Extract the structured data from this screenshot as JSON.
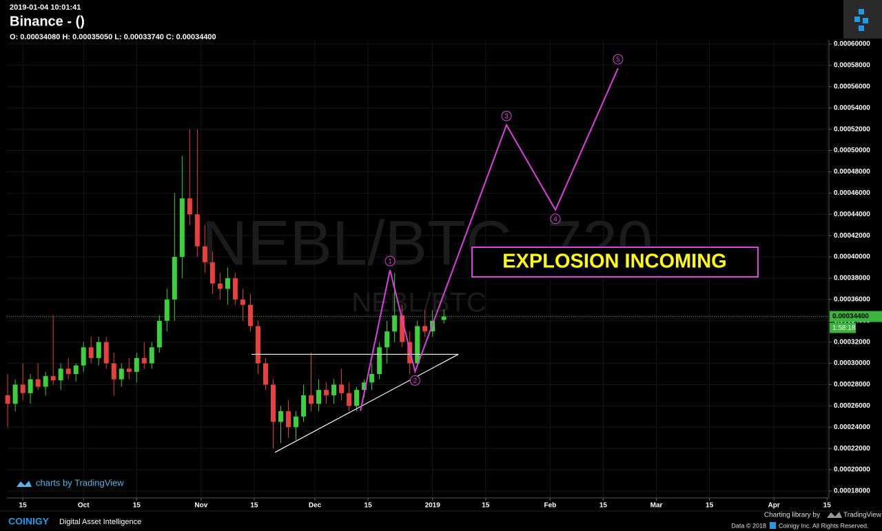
{
  "header": {
    "timestamp": "2019-01-04 10:01:41",
    "title": "Binance -  ()",
    "ohlc": "O: 0.00034080 H: 0.00035050 L: 0.00033740 C: 0.00034400"
  },
  "chart_data": {
    "type": "candlestick",
    "watermark": "NEBL/BTC, 720",
    "watermark_sub": "NEBL/BTC",
    "up_color": "#3bd13b",
    "down_color": "#e8413c",
    "grid": true,
    "x": [
      10,
      12,
      14,
      16,
      18,
      20,
      22,
      24,
      26,
      28,
      30,
      32,
      34,
      36,
      38,
      40,
      42,
      44,
      46,
      48,
      50,
      52,
      54,
      56,
      58,
      60,
      62,
      64,
      66,
      68,
      70,
      72,
      74,
      76,
      78,
      80,
      82,
      84,
      86,
      88,
      90,
      92,
      94,
      96,
      98,
      100,
      102,
      104,
      106,
      108,
      110,
      112,
      114,
      116,
      118,
      120,
      122,
      125
    ],
    "open": [
      0.00027,
      0.000262,
      0.00028,
      0.000272,
      0.000285,
      0.000278,
      0.000288,
      0.000284,
      0.000295,
      0.00029,
      0.000298,
      0.000315,
      0.000305,
      0.00032,
      0.0003,
      0.000285,
      0.000295,
      0.000292,
      0.000305,
      0.0003,
      0.000315,
      0.00034,
      0.00036,
      0.0004,
      0.000455,
      0.00044,
      0.00041,
      0.000395,
      0.000375,
      0.00037,
      0.00038,
      0.00036,
      0.000355,
      0.000335,
      0.0003,
      0.00028,
      0.000245,
      0.000255,
      0.00024,
      0.00025,
      0.00027,
      0.000262,
      0.000275,
      0.00027,
      0.00028,
      0.000272,
      0.00026,
      0.000275,
      0.000282,
      0.00029,
      0.000315,
      0.00033,
      0.000345,
      0.00032,
      0.0003,
      0.000335,
      0.00033,
      0.0003408
    ],
    "high": [
      0.00029,
      0.000285,
      0.0003,
      0.00029,
      0.0003,
      0.000292,
      0.000345,
      0.0003,
      0.000305,
      0.0003,
      0.00032,
      0.000325,
      0.000325,
      0.000325,
      0.00031,
      0.0003,
      0.000305,
      0.00031,
      0.00032,
      0.00032,
      0.000345,
      0.00037,
      0.00046,
      0.000495,
      0.00052,
      0.00052,
      0.00043,
      0.000405,
      0.000385,
      0.00039,
      0.000385,
      0.00037,
      0.000365,
      0.00034,
      0.000305,
      0.000285,
      0.00026,
      0.000265,
      0.000255,
      0.00028,
      0.00031,
      0.000285,
      0.000282,
      0.000285,
      0.000295,
      0.000282,
      0.000278,
      0.000285,
      0.0003,
      0.00032,
      0.00034,
      0.000385,
      0.000355,
      0.00033,
      0.00034,
      0.00035,
      0.00035,
      0.0003505
    ],
    "low": [
      0.00024,
      0.000255,
      0.000265,
      0.000262,
      0.000275,
      0.00027,
      0.00028,
      0.000275,
      0.000285,
      0.000283,
      0.000292,
      0.0003,
      0.000298,
      0.000295,
      0.00027,
      0.000278,
      0.000285,
      0.000282,
      0.000295,
      0.000295,
      0.00031,
      0.00033,
      0.00034,
      0.00038,
      0.00043,
      0.0004,
      0.000385,
      0.000365,
      0.00036,
      0.000355,
      0.000355,
      0.00034,
      0.00033,
      0.00029,
      0.000275,
      0.00022,
      0.000225,
      0.00023,
      0.000228,
      0.000245,
      0.000255,
      0.000255,
      0.000262,
      0.000262,
      0.000265,
      0.000255,
      0.000255,
      0.000268,
      0.000275,
      0.000285,
      0.0003,
      0.00032,
      0.000315,
      0.00029,
      0.000298,
      0.000325,
      0.000325,
      0.0003374
    ],
    "close": [
      0.000262,
      0.00028,
      0.000272,
      0.000285,
      0.000278,
      0.000288,
      0.000284,
      0.000295,
      0.00029,
      0.000298,
      0.000315,
      0.000305,
      0.00032,
      0.0003,
      0.000285,
      0.000295,
      0.000292,
      0.000305,
      0.0003,
      0.000315,
      0.00034,
      0.00036,
      0.0004,
      0.000455,
      0.00044,
      0.00041,
      0.000395,
      0.000375,
      0.00037,
      0.00038,
      0.00036,
      0.000355,
      0.000335,
      0.0003,
      0.00028,
      0.000245,
      0.000255,
      0.00024,
      0.00025,
      0.00027,
      0.000262,
      0.000275,
      0.00027,
      0.00028,
      0.000272,
      0.00026,
      0.000275,
      0.000282,
      0.00029,
      0.000315,
      0.00033,
      0.000345,
      0.00032,
      0.0003,
      0.000335,
      0.00033,
      0.00034,
      0.000344
    ],
    "xlim": [
      9.8,
      226.5
    ],
    "xticks": [
      {
        "value": 14,
        "label": "15"
      },
      {
        "value": 30,
        "label": "Oct"
      },
      {
        "value": 44,
        "label": "15"
      },
      {
        "value": 61,
        "label": "Nov"
      },
      {
        "value": 75,
        "label": "15"
      },
      {
        "value": 91,
        "label": "Dec"
      },
      {
        "value": 105,
        "label": "15"
      },
      {
        "value": 122,
        "label": "2019"
      },
      {
        "value": 136,
        "label": "15"
      },
      {
        "value": 153,
        "label": "Feb"
      },
      {
        "value": 167,
        "label": "15"
      },
      {
        "value": 181,
        "label": "Mar"
      },
      {
        "value": 195,
        "label": "15"
      },
      {
        "value": 212,
        "label": "Apr"
      },
      {
        "value": 226,
        "label": "15"
      }
    ],
    "ylim": [
      0.0001735,
      0.0006039
    ],
    "yticks": [
      {
        "value": 0.00018,
        "label": "0.00018000"
      },
      {
        "value": 0.0002,
        "label": "0.00020000"
      },
      {
        "value": 0.00022,
        "label": "0.00022000"
      },
      {
        "value": 0.00024,
        "label": "0.00024000"
      },
      {
        "value": 0.00026,
        "label": "0.00026000"
      },
      {
        "value": 0.00028,
        "label": "0.00028000"
      },
      {
        "value": 0.0003,
        "label": "0.00030000"
      },
      {
        "value": 0.00032,
        "label": "0.00032000"
      },
      {
        "value": 0.00034,
        "label": "0.00034000"
      },
      {
        "value": 0.00036,
        "label": "0.00036000"
      },
      {
        "value": 0.00038,
        "label": "0.00038000"
      },
      {
        "value": 0.0004,
        "label": "0.00040000"
      },
      {
        "value": 0.00042,
        "label": "0.00042000"
      },
      {
        "value": 0.00044,
        "label": "0.00044000"
      },
      {
        "value": 0.00046,
        "label": "0.00046000"
      },
      {
        "value": 0.00048,
        "label": "0.00048000"
      },
      {
        "value": 0.0005,
        "label": "0.00050000"
      },
      {
        "value": 0.00052,
        "label": "0.00052000"
      },
      {
        "value": 0.00054,
        "label": "0.00054000"
      },
      {
        "value": 0.00056,
        "label": "0.00056000"
      },
      {
        "value": 0.00058,
        "label": "0.00058000"
      },
      {
        "value": 0.0006,
        "label": "0.00060000"
      }
    ],
    "last_price": {
      "value": 0.000344,
      "label": "0.00034400",
      "countdown": "1:58:18",
      "color": "#3bb53b"
    },
    "wave": {
      "color": "#e040e0",
      "x": [
        103,
        110.8,
        117.4,
        141.5,
        154.4,
        170.9
      ],
      "y": [
        0.0002553,
        0.0003877,
        0.0002923,
        0.000524,
        0.0004442,
        0.0005773
      ],
      "labels": [
        null,
        "1",
        "2",
        "3",
        "4",
        "5"
      ]
    },
    "triangle": {
      "color": "#ffffff",
      "top": {
        "x": [
          74.3,
          128.8
        ],
        "y": [
          0.0003085,
          0.0003085
        ]
      },
      "bottom": {
        "x": [
          80.5,
          128.8
        ],
        "y": [
          0.0002164,
          0.0003085
        ]
      }
    },
    "annotation": {
      "text": "EXPLOSION INCOMING"
    }
  },
  "footer": {
    "tv_credit": "charts by TradingView",
    "brand": "COINIGY",
    "tagline": "Digital Asset Intelligence",
    "library": "Charting library by",
    "tv": "TradingView",
    "data": "Data © 2018",
    "rights": "Coinigy Inc. All Rights Reserved."
  }
}
